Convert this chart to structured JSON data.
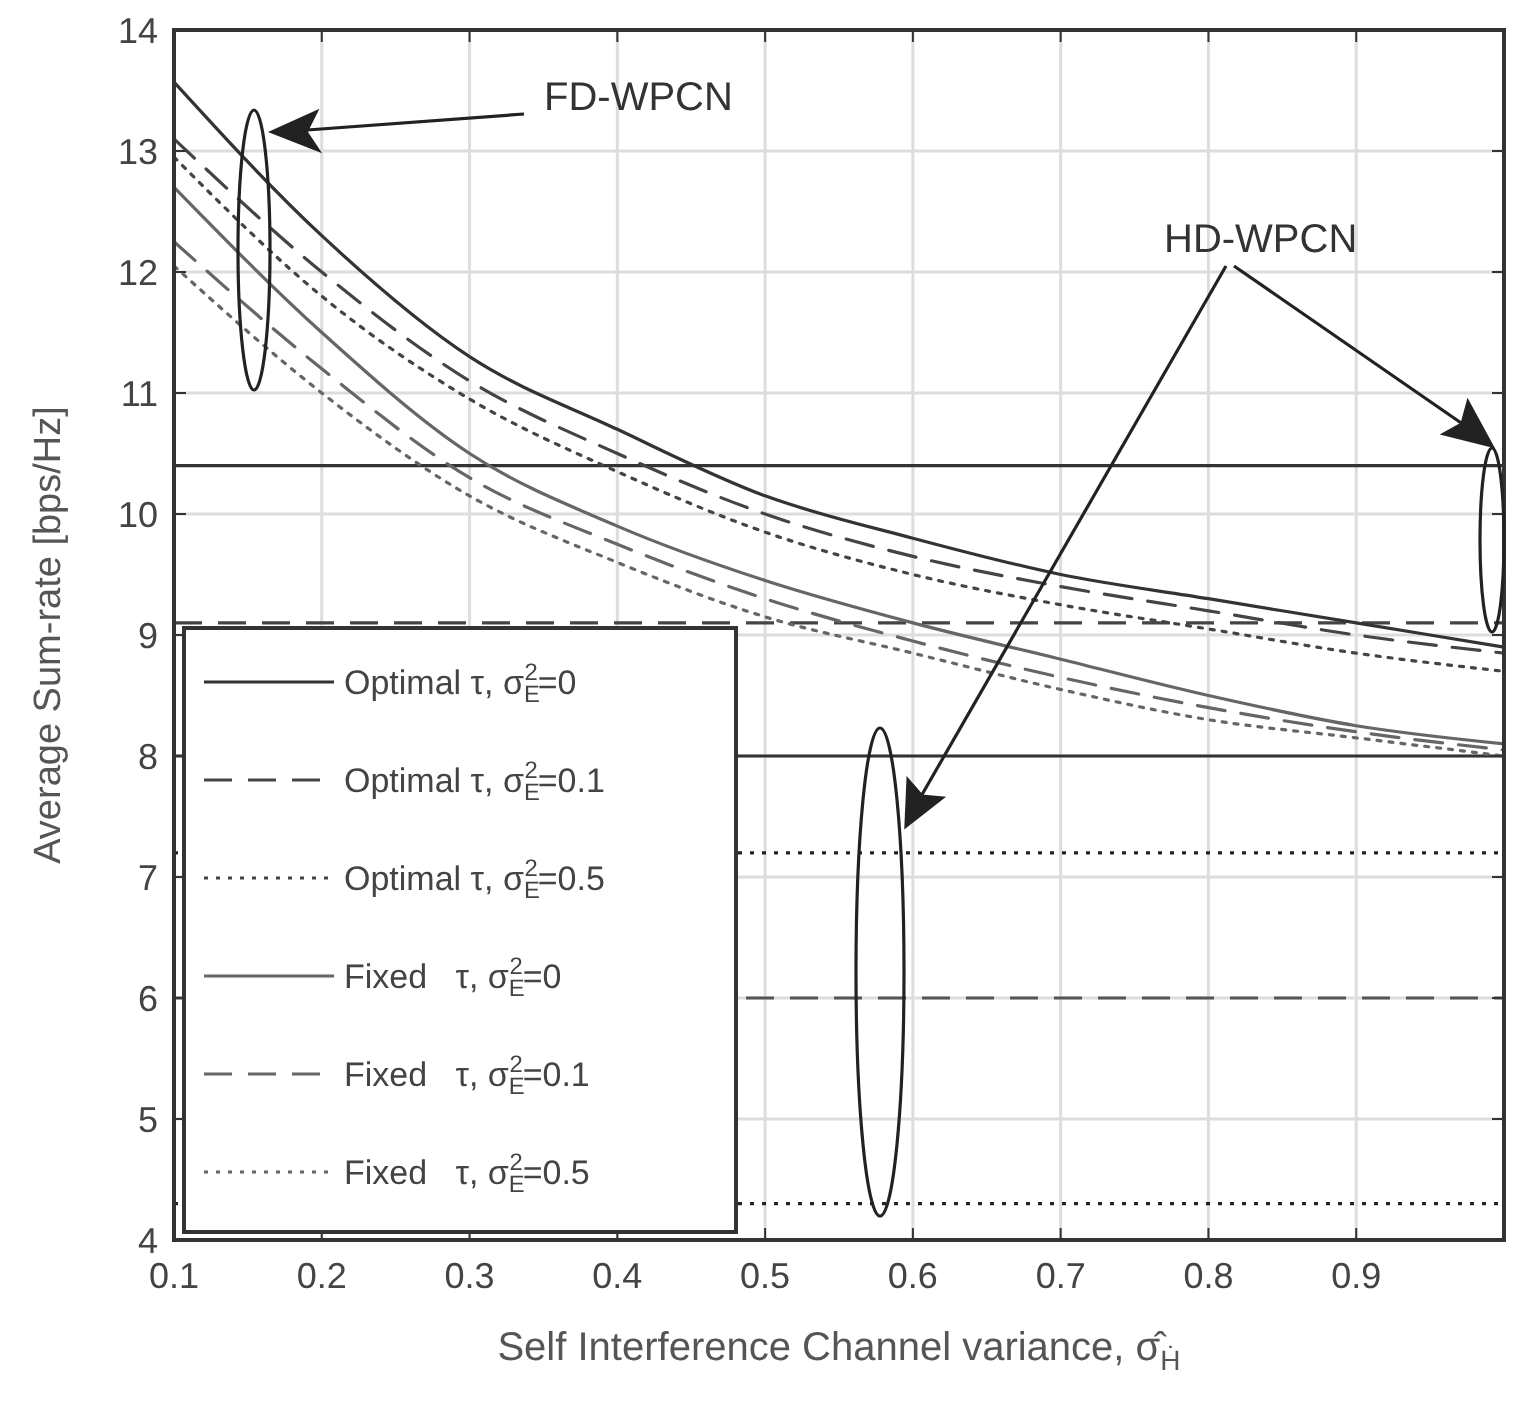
{
  "chart_data": {
    "type": "line",
    "xlabel": "Self Interference Channel variance, σ̂$_{Ḣ}$",
    "ylabel": "Average Sum-rate [bps/Hz]",
    "annotations": [
      "FD-WPCN",
      "HD-WPCN"
    ],
    "x": [
      0.1,
      0.2,
      0.3,
      0.4,
      0.5,
      0.6,
      0.7,
      0.8,
      0.9,
      1.0
    ],
    "xlim": [
      0.1,
      1.0
    ],
    "xticks": [
      0.1,
      0.2,
      0.3,
      0.4,
      0.5,
      0.6,
      0.7,
      0.8,
      0.9
    ],
    "ref_lines": [
      {
        "axis": "y",
        "value": 10.4,
        "color": "#333333",
        "line_style": "solid"
      },
      {
        "axis": "y",
        "value": 9.1,
        "color": "#444444",
        "line_style": "dashed"
      },
      {
        "axis": "y",
        "value": 7.2,
        "color": "#222222",
        "line_style": "dotted"
      },
      {
        "axis": "y",
        "value": 8.0,
        "color": "#333333",
        "line_style": "solid"
      },
      {
        "axis": "y",
        "value": 6.0,
        "color": "#555555",
        "line_style": "dashed"
      },
      {
        "axis": "y",
        "value": 4.3,
        "color": "#222222",
        "line_style": "dotted"
      }
    ],
    "ylim": [
      4,
      14
    ],
    "yticks": [
      4,
      5,
      6,
      7,
      8,
      9,
      10,
      11,
      12,
      13,
      14
    ],
    "grid": true,
    "legend": "bottom left",
    "marker": "none",
    "series": [
      {
        "name": "Optimal τ, σ$_{E}$$^{2}$=0",
        "color": "#333333",
        "line_style": "solid",
        "values": [
          13.57,
          12.3,
          11.3,
          10.7,
          10.15,
          9.8,
          9.5,
          9.3,
          9.1,
          8.9
        ]
      },
      {
        "name": "Optimal τ, σ$_{E}$$^{2}$=0.1",
        "color": "#444444",
        "line_style": "dashed",
        "values": [
          13.1,
          12.0,
          11.1,
          10.5,
          10.0,
          9.65,
          9.4,
          9.2,
          9.0,
          8.85
        ]
      },
      {
        "name": "Optimal τ, σ$_{E}$$^{2}$=0.5",
        "color": "#444444",
        "line_style": "dotted",
        "values": [
          12.95,
          11.8,
          10.95,
          10.35,
          9.85,
          9.5,
          9.25,
          9.05,
          8.85,
          8.7
        ]
      },
      {
        "name": "Fixed   τ, σ$_{E}$$^{2}$=0",
        "color": "#666666",
        "line_style": "solid",
        "values": [
          12.7,
          11.5,
          10.5,
          9.9,
          9.45,
          9.1,
          8.8,
          8.5,
          8.25,
          8.1
        ]
      },
      {
        "name": "Fixed   τ, σ$_{E}$$^{2}$=0.1",
        "color": "#666666",
        "line_style": "dashed",
        "values": [
          12.25,
          11.2,
          10.3,
          9.75,
          9.3,
          8.95,
          8.65,
          8.4,
          8.2,
          8.05
        ]
      },
      {
        "name": "Fixed   τ, σ$_{E}$$^{2}$=0.5",
        "color": "#666666",
        "line_style": "dotted",
        "values": [
          12.05,
          11.0,
          10.15,
          9.6,
          9.15,
          8.85,
          8.55,
          8.3,
          8.15,
          8.0
        ]
      }
    ]
  }
}
